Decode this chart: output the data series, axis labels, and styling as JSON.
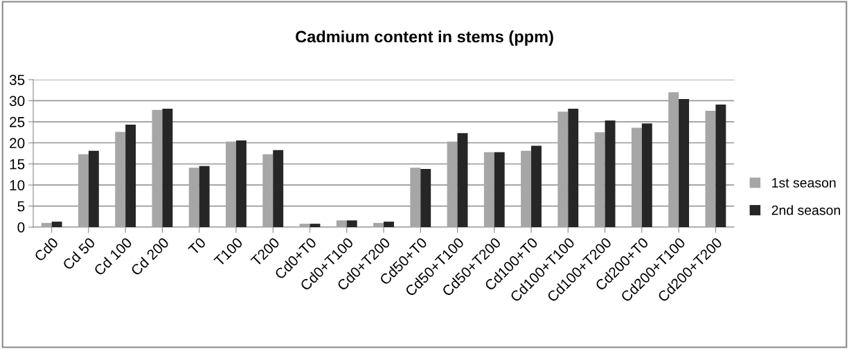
{
  "chart_data": {
    "type": "bar",
    "title": "Cadmium content in stems (ppm)",
    "categories": [
      "Cd0",
      "Cd 50",
      "Cd 100",
      "Cd 200",
      "T0",
      "T100",
      "T200",
      "Cd0+T0",
      "Cd0+T100",
      "Cd0+T200",
      "Cd50+T0",
      "Cd50+T100",
      "Cd50+T200",
      "Cd100+T0",
      "Cd100+T100",
      "Cd100+T200",
      "Cd200+T0",
      "Cd200+T100",
      "Cd200+T200"
    ],
    "series": [
      {
        "name": "1st season",
        "color": "#a6a6a6",
        "values": [
          1.0,
          17.3,
          22.6,
          27.8,
          14.1,
          20.3,
          17.3,
          0.8,
          1.6,
          1.0,
          14.1,
          20.3,
          17.8,
          18.1,
          27.4,
          22.5,
          23.6,
          32.0,
          27.6
        ]
      },
      {
        "name": "2nd season",
        "color": "#262626",
        "values": [
          1.3,
          18.1,
          24.3,
          28.1,
          14.5,
          20.6,
          18.3,
          0.8,
          1.6,
          1.3,
          13.8,
          22.3,
          17.8,
          19.3,
          28.1,
          25.3,
          24.6,
          30.4,
          29.1
        ]
      }
    ],
    "ylim": [
      0,
      35
    ],
    "yticks": [
      0,
      5,
      10,
      15,
      20,
      25,
      30,
      35
    ],
    "grid": "y",
    "legend": "right"
  }
}
